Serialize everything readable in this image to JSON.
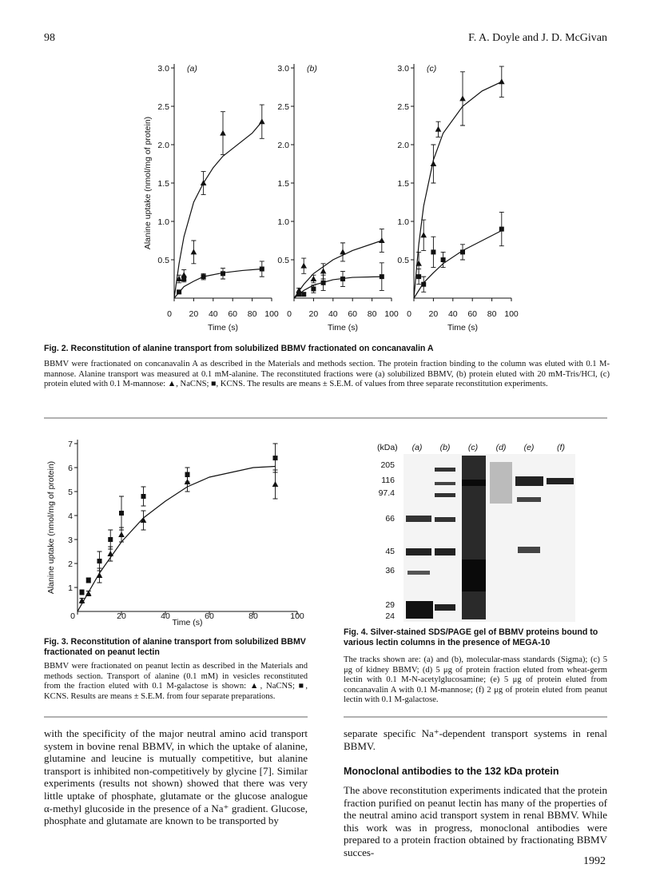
{
  "header": {
    "page_number": "98",
    "authors": "F. A. Doyle and J. D. McGivan"
  },
  "chart_data": [
    {
      "type": "scatter",
      "panel_label": "(a)",
      "ylabel": "Alanine uptake (nmol/mg of protein)",
      "xlabel": "Time (s)",
      "xlim": [
        0,
        100
      ],
      "ylim": [
        0,
        3
      ],
      "xticks": [
        0,
        20,
        40,
        60,
        80,
        100
      ],
      "yticks": [
        0.5,
        {
          "value": 1,
          "label": "1.0"
        },
        1.5,
        {
          "value": 2,
          "label": "2.0"
        },
        2.5,
        {
          "value": 3,
          "label": "3.0"
        }
      ],
      "series": [
        {
          "marker": "triangle",
          "x": [
            5,
            10,
            20,
            30,
            50,
            90
          ],
          "values": [
            0.25,
            0.3,
            0.6,
            1.5,
            2.15,
            2.3
          ],
          "errors": [
            0.05,
            0.07,
            0.15,
            0.15,
            0.28,
            0.22
          ],
          "fit": {
            "x": [
              0,
              5,
              10,
              20,
              30,
              40,
              50,
              60,
              80,
              90
            ],
            "values": [
              0,
              0.45,
              0.8,
              1.25,
              1.5,
              1.7,
              1.85,
              1.95,
              2.15,
              2.3
            ]
          }
        },
        {
          "marker": "square",
          "x": [
            5,
            10,
            30,
            50,
            90
          ],
          "values": [
            0.08,
            0.25,
            0.28,
            0.32,
            0.38
          ],
          "errors": [
            0.02,
            0.04,
            0.04,
            0.07,
            0.1
          ],
          "fit": {
            "x": [
              0,
              10,
              20,
              30,
              50,
              70,
              90
            ],
            "values": [
              0,
              0.15,
              0.22,
              0.28,
              0.33,
              0.36,
              0.38
            ]
          }
        }
      ]
    },
    {
      "type": "scatter",
      "panel_label": "(b)",
      "xlabel": "Time (s)",
      "xlim": [
        0,
        100
      ],
      "ylim": [
        0,
        3
      ],
      "xticks": [
        0,
        20,
        40,
        60,
        80,
        100
      ],
      "yticks": [
        0.5,
        {
          "value": 1,
          "label": "1.0"
        },
        1.5,
        {
          "value": 2,
          "label": "2.0"
        },
        2.5,
        {
          "value": 3,
          "label": "3.0"
        }
      ],
      "series": [
        {
          "marker": "triangle",
          "x": [
            5,
            10,
            20,
            30,
            50,
            90
          ],
          "values": [
            0.1,
            0.42,
            0.25,
            0.35,
            0.6,
            0.75
          ],
          "errors": [
            0.03,
            0.1,
            0.05,
            0.1,
            0.12,
            0.15
          ],
          "fit": {
            "x": [
              0,
              10,
              20,
              40,
              60,
              90
            ],
            "values": [
              0,
              0.18,
              0.32,
              0.5,
              0.62,
              0.75
            ]
          }
        },
        {
          "marker": "square",
          "x": [
            5,
            10,
            20,
            30,
            50,
            90
          ],
          "values": [
            0.05,
            0.05,
            0.12,
            0.2,
            0.25,
            0.28
          ],
          "errors": [
            0.02,
            0.02,
            0.05,
            0.1,
            0.1,
            0.18
          ],
          "fit": {
            "x": [
              0,
              10,
              20,
              40,
              60,
              90
            ],
            "values": [
              0,
              0.1,
              0.17,
              0.24,
              0.27,
              0.28
            ]
          }
        }
      ]
    },
    {
      "type": "scatter",
      "panel_label": "(c)",
      "xlabel": "Time (s)",
      "xlim": [
        0,
        100
      ],
      "ylim": [
        0,
        3
      ],
      "xticks": [
        0,
        20,
        40,
        60,
        80,
        100
      ],
      "yticks": [
        0.5,
        {
          "value": 1,
          "label": "1.0"
        },
        1.5,
        {
          "value": 2,
          "label": "2.0"
        },
        2.5,
        {
          "value": 3,
          "label": "3.0"
        }
      ],
      "series": [
        {
          "marker": "triangle",
          "x": [
            5,
            10,
            20,
            25,
            50,
            90
          ],
          "values": [
            0.45,
            0.82,
            1.75,
            2.2,
            2.6,
            2.82
          ],
          "errors": [
            0.15,
            0.2,
            0.25,
            0.1,
            0.35,
            0.2
          ],
          "fit": {
            "x": [
              0,
              5,
              10,
              20,
              30,
              50,
              70,
              90
            ],
            "values": [
              0,
              0.7,
              1.2,
              1.8,
              2.15,
              2.5,
              2.7,
              2.82
            ]
          }
        },
        {
          "marker": "square",
          "x": [
            5,
            10,
            20,
            30,
            50,
            90
          ],
          "values": [
            0.28,
            0.18,
            0.6,
            0.5,
            0.6,
            0.9
          ],
          "errors": [
            0.1,
            0.1,
            0.2,
            0.1,
            0.1,
            0.22
          ],
          "fit": {
            "x": [
              0,
              10,
              20,
              30,
              50,
              70,
              90
            ],
            "values": [
              0,
              0.2,
              0.33,
              0.45,
              0.62,
              0.75,
              0.88
            ]
          }
        }
      ]
    },
    {
      "type": "scatter",
      "ylabel": "Alanine uptake (nmol/mg of protein)",
      "xlabel": "Time (s)",
      "xlim": [
        0,
        100
      ],
      "ylim": [
        0,
        7
      ],
      "xticks": [
        0,
        20,
        40,
        60,
        80,
        100
      ],
      "yticks": [
        1,
        2,
        3,
        4,
        5,
        6,
        7
      ],
      "series": [
        {
          "marker": "square",
          "x": [
            2,
            5,
            10,
            15,
            20,
            30,
            50,
            90
          ],
          "values": [
            0.8,
            1.3,
            2.1,
            3.0,
            4.1,
            4.8,
            5.7,
            6.4
          ],
          "errors": [
            0.1,
            0.1,
            0.4,
            0.4,
            0.7,
            0.4,
            0.3,
            0.6
          ]
        },
        {
          "marker": "triangle",
          "x": [
            2,
            5,
            10,
            15,
            20,
            30,
            50,
            90
          ],
          "values": [
            0.45,
            0.75,
            1.5,
            2.4,
            3.2,
            3.8,
            5.4,
            5.3
          ],
          "errors": [
            0.1,
            0.1,
            0.3,
            0.3,
            0.3,
            0.4,
            0.4,
            0.6
          ],
          "fit": {
            "x": [
              0,
              10,
              20,
              30,
              40,
              50,
              60,
              70,
              80,
              90
            ],
            "values": [
              0,
              1.6,
              2.9,
              3.9,
              4.6,
              5.2,
              5.6,
              5.8,
              6.0,
              6.05
            ]
          }
        }
      ]
    }
  ],
  "fig2": {
    "title": "Fig. 2. Reconstitution of alanine transport from solubilized BBMV fractionated on concanavalin A",
    "caption": "BBMV were fractionated on concanavalin A as described in the Materials and methods section. The protein fraction binding to the column was eluted with 0.1 M-mannose. Alanine transport was measured at 0.1 mM-alanine. The reconstituted fractions were (a) solubilized BBMV, (b) protein eluted with 20 mM-Tris/HCl, (c) protein eluted with 0.1 M-mannose: ▲, NaCNS; ■, KCNS. The results are means ± S.E.M. of values from three separate reconstitution experiments."
  },
  "fig3": {
    "title": "Fig. 3. Reconstitution of alanine transport from solubilized BBMV fractionated on peanut lectin",
    "caption": "BBMV were fractionated on peanut lectin as described in the Materials and methods section. Transport of alanine (0.1 mM) in vesicles reconstituted from the fraction eluted with 0.1 M-galactose is shown: ▲, NaCNS; ■, KCNS. Results are means ± S.E.M. from four separate preparations."
  },
  "fig4": {
    "unit_label": "(kDa)",
    "markers": [
      "205",
      "116",
      "97.4",
      "66",
      "45",
      "36",
      "29",
      "24"
    ],
    "lanes": [
      "(a)",
      "(b)",
      "(c)",
      "(d)",
      "(e)",
      "(f)"
    ],
    "title": "Fig. 4. Silver-stained SDS/PAGE gel of BBMV proteins bound to various lectin columns in the presence of MEGA-10",
    "caption": "The tracks shown are: (a) and (b), molecular-mass standards (Sigma); (c) 5 μg of kidney BBMV; (d) 5 μg of protein fraction eluted from wheat-germ lectin with 0.1 M-N-acetylglucosamine; (e) 5 μg of protein eluted from concanavalin A with 0.1 M-mannose; (f) 2 μg of protein eluted from peanut lectin with 0.1 M-galactose."
  },
  "body": {
    "left": "with the specificity of the major neutral amino acid transport system in bovine renal BBMV, in which the uptake of alanine, glutamine and leucine is mutually competitive, but alanine transport is inhibited non-competitively by glycine [7]. Similar experiments (results not shown) showed that there was very little uptake of phosphate, glutamate or the glucose analogue α-methyl glucoside in the presence of a Na⁺ gradient. Glucose, phosphate and glutamate are known to be transported by",
    "right_top": "separate specific Na⁺-dependent transport systems in renal BBMV.",
    "heading": "Monoclonal antibodies to the 132 kDa protein",
    "right": "The above reconstitution experiments indicated that the protein fraction purified on peanut lectin has many of the properties of the neutral amino acid transport system in renal BBMV. While this work was in progress, monoclonal antibodies were prepared to a protein fraction obtained by fractionating BBMV succes-"
  },
  "footer": {
    "page_number": "1992"
  }
}
